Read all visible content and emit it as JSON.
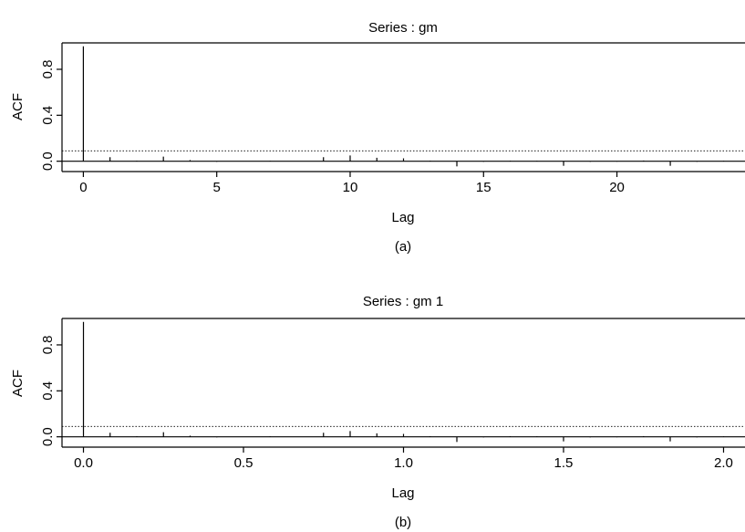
{
  "chart_data": [
    {
      "type": "bar",
      "title": "Series : gm",
      "xlabel": "Lag",
      "ylabel": "ACF",
      "caption": "(a)",
      "xlim": [
        -0.8,
        24.8
      ],
      "ylim": [
        -0.09,
        1.03
      ],
      "xticks": [
        0,
        5,
        10,
        15,
        20
      ],
      "xtick_labels": [
        "0",
        "5",
        "10",
        "15",
        "20"
      ],
      "yticks": [
        0.0,
        0.4,
        0.8
      ],
      "ytick_labels": [
        "0.0",
        "0.4",
        "0.8"
      ],
      "x": [
        0,
        1,
        2,
        3,
        4,
        5,
        6,
        7,
        8,
        9,
        10,
        11,
        12,
        13,
        14,
        15,
        16,
        17,
        18,
        19,
        20,
        21,
        22,
        23,
        24
      ],
      "values": [
        1.0,
        0.035,
        0.005,
        0.04,
        0.01,
        -0.005,
        0.0,
        0.004,
        0.0,
        0.035,
        0.05,
        0.03,
        0.025,
        0.005,
        -0.045,
        -0.005,
        0.005,
        0.004,
        -0.04,
        -0.005,
        -0.004,
        0.006,
        -0.04,
        -0.005,
        0.004
      ],
      "conf_band": [
        0.09,
        -0.09
      ],
      "grid": false
    },
    {
      "type": "bar",
      "title": "Series : gm 1",
      "xlabel": "Lag",
      "ylabel": "ACF",
      "caption": "(b)",
      "xlim": [
        -0.067,
        2.067
      ],
      "ylim": [
        -0.09,
        1.03
      ],
      "xticks": [
        0.0,
        0.5,
        1.0,
        1.5,
        2.0
      ],
      "xtick_labels": [
        "0.0",
        "0.5",
        "1.0",
        "1.5",
        "2.0"
      ],
      "yticks": [
        0.0,
        0.4,
        0.8
      ],
      "ytick_labels": [
        "0.0",
        "0.4",
        "0.8"
      ],
      "x": [
        0,
        0.0833,
        0.1667,
        0.25,
        0.3333,
        0.4167,
        0.5,
        0.5833,
        0.6667,
        0.75,
        0.8333,
        0.9167,
        1.0,
        1.0833,
        1.1667,
        1.25,
        1.3333,
        1.4167,
        1.5,
        1.5833,
        1.6667,
        1.75,
        1.8333,
        1.9167,
        2.0
      ],
      "values": [
        1.0,
        0.035,
        0.005,
        0.04,
        0.01,
        -0.005,
        0.0,
        0.004,
        0.0,
        0.035,
        0.05,
        0.03,
        0.025,
        0.005,
        -0.045,
        -0.005,
        0.005,
        0.004,
        -0.04,
        -0.005,
        -0.004,
        0.006,
        -0.04,
        -0.005,
        0.004
      ],
      "conf_band": [
        0.09,
        -0.09
      ],
      "grid": false
    }
  ]
}
